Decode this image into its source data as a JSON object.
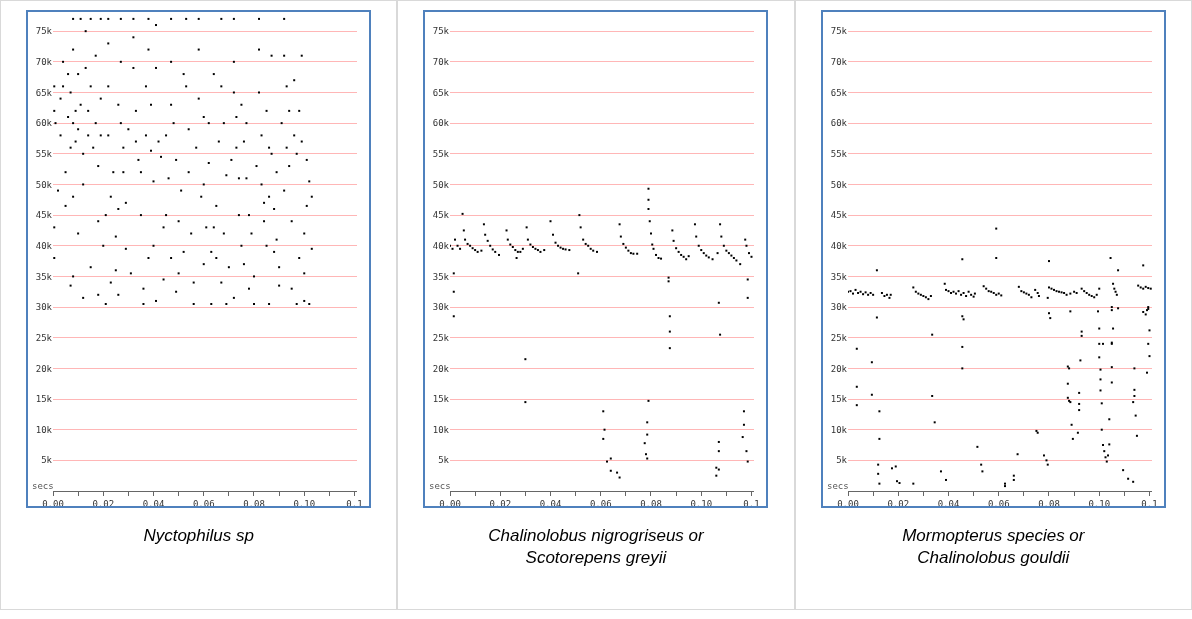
{
  "chart_data": [
    {
      "type": "scatter",
      "title": "Nyctophilus sp",
      "xlabel": "secs",
      "marker": "square",
      "grid": "y",
      "xlim": [
        0,
        0.121
      ],
      "ylim": [
        0,
        77800
      ],
      "xticks": [
        {
          "value": 0,
          "label": "0.00"
        },
        {
          "value": 0.01,
          "label": null
        },
        {
          "value": 0.02,
          "label": "0.02"
        },
        {
          "value": 0.03,
          "label": null
        },
        {
          "value": 0.04,
          "label": "0.04"
        },
        {
          "value": 0.05,
          "label": null
        },
        {
          "value": 0.06,
          "label": "0.06"
        },
        {
          "value": 0.07,
          "label": null
        },
        {
          "value": 0.08,
          "label": "0.08"
        },
        {
          "value": 0.09,
          "label": null
        },
        {
          "value": 0.1,
          "label": "0.10"
        },
        {
          "value": 0.11,
          "label": null
        },
        {
          "value": 0.12,
          "label": "0.1"
        }
      ],
      "yticks": [
        {
          "value": 5000,
          "label": "5k"
        },
        {
          "value": 10000,
          "label": "10k"
        },
        {
          "value": 15000,
          "label": "15k"
        },
        {
          "value": 20000,
          "label": "20k"
        },
        {
          "value": 25000,
          "label": "25k"
        },
        {
          "value": 30000,
          "label": "30k"
        },
        {
          "value": 35000,
          "label": "35k"
        },
        {
          "value": 40000,
          "label": "40k"
        },
        {
          "value": 45000,
          "label": "45k"
        },
        {
          "value": 50000,
          "label": "50k"
        },
        {
          "value": 55000,
          "label": "55k"
        },
        {
          "value": 60000,
          "label": "60k"
        },
        {
          "value": 65000,
          "label": "65k"
        },
        {
          "value": 70000,
          "label": "70k"
        },
        {
          "value": 75000,
          "label": "75k"
        }
      ],
      "series": [
        {
          "color": "#000000",
          "x": [
            0.0005,
            0.0005,
            0.0005,
            0.0005,
            0.001,
            0.002,
            0.003,
            0.003,
            0.004,
            0.004,
            0.005,
            0.005,
            0.006,
            0.006,
            0.007,
            0.007,
            0.007,
            0.008,
            0.008,
            0.008,
            0.008,
            0.008,
            0.009,
            0.009,
            0.01,
            0.01,
            0.01,
            0.011,
            0.011,
            0.012,
            0.012,
            0.012,
            0.013,
            0.013,
            0.014,
            0.014,
            0.015,
            0.015,
            0.015,
            0.016,
            0.017,
            0.017,
            0.018,
            0.018,
            0.018,
            0.019,
            0.019,
            0.019,
            0.02,
            0.021,
            0.021,
            0.022,
            0.022,
            0.022,
            0.022,
            0.023,
            0.023,
            0.024,
            0.025,
            0.025,
            0.026,
            0.026,
            0.026,
            0.027,
            0.027,
            0.027,
            0.028,
            0.028,
            0.029,
            0.029,
            0.03,
            0.031,
            0.032,
            0.032,
            0.032,
            0.033,
            0.033,
            0.034,
            0.035,
            0.035,
            0.036,
            0.036,
            0.037,
            0.037,
            0.038,
            0.038,
            0.038,
            0.039,
            0.039,
            0.04,
            0.04,
            0.041,
            0.041,
            0.041,
            0.042,
            0.043,
            0.044,
            0.044,
            0.045,
            0.045,
            0.046,
            0.047,
            0.047,
            0.047,
            0.047,
            0.048,
            0.049,
            0.049,
            0.05,
            0.05,
            0.051,
            0.052,
            0.052,
            0.053,
            0.053,
            0.054,
            0.054,
            0.055,
            0.056,
            0.056,
            0.057,
            0.058,
            0.058,
            0.058,
            0.059,
            0.06,
            0.06,
            0.06,
            0.061,
            0.062,
            0.062,
            0.063,
            0.063,
            0.064,
            0.064,
            0.065,
            0.065,
            0.066,
            0.067,
            0.067,
            0.067,
            0.068,
            0.068,
            0.069,
            0.069,
            0.07,
            0.071,
            0.072,
            0.072,
            0.072,
            0.072,
            0.073,
            0.073,
            0.074,
            0.074,
            0.075,
            0.075,
            0.076,
            0.076,
            0.077,
            0.077,
            0.078,
            0.078,
            0.079,
            0.08,
            0.08,
            0.081,
            0.082,
            0.082,
            0.082,
            0.083,
            0.083,
            0.084,
            0.084,
            0.085,
            0.085,
            0.086,
            0.086,
            0.086,
            0.087,
            0.087,
            0.088,
            0.088,
            0.089,
            0.089,
            0.09,
            0.09,
            0.091,
            0.092,
            0.092,
            0.092,
            0.093,
            0.093,
            0.094,
            0.094,
            0.095,
            0.095,
            0.096,
            0.096,
            0.097,
            0.097,
            0.098,
            0.098,
            0.099,
            0.099,
            0.1,
            0.1,
            0.1,
            0.101,
            0.101,
            0.102,
            0.102,
            0.103,
            0.103
          ],
          "values": [
            66000,
            62000,
            43000,
            38000,
            60000,
            49000,
            58000,
            64000,
            70000,
            66000,
            46500,
            52000,
            68000,
            61000,
            65000,
            56000,
            33500,
            77000,
            72000,
            60000,
            35000,
            48000,
            62000,
            57000,
            68000,
            59000,
            42000,
            77000,
            63000,
            55000,
            50000,
            31500,
            75000,
            69000,
            62000,
            58000,
            36500,
            77000,
            66000,
            56000,
            71000,
            60000,
            53000,
            44000,
            32000,
            77000,
            64000,
            58000,
            40000,
            30500,
            45000,
            77000,
            73000,
            66000,
            58000,
            48000,
            34000,
            52000,
            41500,
            36000,
            63000,
            46000,
            32000,
            77000,
            70000,
            60000,
            56000,
            52000,
            47000,
            39500,
            59000,
            35500,
            77000,
            74000,
            69000,
            62000,
            57000,
            54000,
            52000,
            45000,
            33000,
            30500,
            66000,
            58000,
            77000,
            72000,
            38000,
            63000,
            55500,
            50500,
            40000,
            76000,
            69000,
            31000,
            57000,
            54500,
            43000,
            34500,
            58000,
            45000,
            51000,
            77000,
            70000,
            63000,
            38000,
            60000,
            54000,
            32500,
            44000,
            35500,
            49000,
            68000,
            39000,
            77000,
            66000,
            59000,
            52000,
            42000,
            34000,
            30500,
            56000,
            77000,
            72000,
            64000,
            48000,
            61000,
            50000,
            37000,
            43000,
            60000,
            53500,
            39000,
            30500,
            68000,
            43000,
            46500,
            38000,
            57000,
            77000,
            66000,
            34000,
            60000,
            42000,
            51500,
            30500,
            36500,
            54000,
            77000,
            70000,
            65000,
            31500,
            61000,
            56000,
            51000,
            45000,
            63000,
            40000,
            57000,
            37000,
            60000,
            51000,
            45000,
            33000,
            42000,
            35000,
            30500,
            53000,
            77000,
            72000,
            65000,
            58000,
            50000,
            47000,
            44000,
            62000,
            40000,
            56000,
            48000,
            30500,
            71000,
            55000,
            39000,
            46000,
            52000,
            41000,
            36500,
            33500,
            60000,
            77000,
            71000,
            49000,
            66000,
            56000,
            53000,
            62000,
            44000,
            33000,
            67000,
            58000,
            55000,
            30500,
            62000,
            38000,
            71000,
            57000,
            42000,
            35500,
            31000,
            54000,
            46500,
            50500,
            30500,
            48000,
            39500
          ]
        }
      ]
    },
    {
      "type": "scatter",
      "title": "Chalinolobus nigrogriseus or Scotorepens greyii",
      "xlabel": "secs",
      "marker": "square",
      "grid": "y",
      "xlim": [
        0,
        0.121
      ],
      "ylim": [
        0,
        77800
      ],
      "xticks": [
        {
          "value": 0,
          "label": "0.00"
        },
        {
          "value": 0.01,
          "label": null
        },
        {
          "value": 0.02,
          "label": "0.02"
        },
        {
          "value": 0.03,
          "label": null
        },
        {
          "value": 0.04,
          "label": "0.04"
        },
        {
          "value": 0.05,
          "label": null
        },
        {
          "value": 0.06,
          "label": "0.06"
        },
        {
          "value": 0.07,
          "label": null
        },
        {
          "value": 0.08,
          "label": "0.08"
        },
        {
          "value": 0.09,
          "label": null
        },
        {
          "value": 0.1,
          "label": "0.10"
        },
        {
          "value": 0.11,
          "label": null
        },
        {
          "value": 0.12,
          "label": "0.1"
        }
      ],
      "yticks": [
        {
          "value": 5000,
          "label": "5k"
        },
        {
          "value": 10000,
          "label": "10k"
        },
        {
          "value": 15000,
          "label": "15k"
        },
        {
          "value": 20000,
          "label": "20k"
        },
        {
          "value": 25000,
          "label": "25k"
        },
        {
          "value": 30000,
          "label": "30k"
        },
        {
          "value": 35000,
          "label": "35k"
        },
        {
          "value": 40000,
          "label": "40k"
        },
        {
          "value": 45000,
          "label": "45k"
        },
        {
          "value": 50000,
          "label": "50k"
        },
        {
          "value": 55000,
          "label": "55k"
        },
        {
          "value": 60000,
          "label": "60k"
        },
        {
          "value": 65000,
          "label": "65k"
        },
        {
          "value": 70000,
          "label": "70k"
        },
        {
          "value": 75000,
          "label": "75k"
        }
      ],
      "series": [
        {
          "color": "#000000",
          "x": [
            0,
            0.001,
            0.002,
            0.003,
            0.004,
            0.0015,
            0.0015,
            0.0015,
            0.005,
            0.0055,
            0.006,
            0.007,
            0.008,
            0.009,
            0.01,
            0.011,
            0.0125,
            0.0135,
            0.014,
            0.015,
            0.016,
            0.017,
            0.018,
            0.0195,
            0.0225,
            0.023,
            0.024,
            0.025,
            0.026,
            0.027,
            0.028,
            0.029,
            0.0265,
            0.0305,
            0.031,
            0.032,
            0.033,
            0.034,
            0.035,
            0.036,
            0.0375,
            0.04,
            0.041,
            0.042,
            0.043,
            0.044,
            0.045,
            0.046,
            0.0475,
            0.051,
            0.0515,
            0.052,
            0.053,
            0.054,
            0.055,
            0.056,
            0.057,
            0.0585,
            0.03,
            0.03,
            0.061,
            0.0615,
            0.061,
            0.0625,
            0.064,
            0.064,
            0.0665,
            0.0675,
            0.0675,
            0.068,
            0.069,
            0.07,
            0.071,
            0.072,
            0.073,
            0.0745,
            0.0775,
            0.078,
            0.0785,
            0.0785,
            0.0785,
            0.079,
            0.079,
            0.079,
            0.079,
            0.0795,
            0.08,
            0.0805,
            0.081,
            0.082,
            0.083,
            0.084,
            0.087,
            0.087,
            0.0875,
            0.0875,
            0.0875,
            0.0885,
            0.089,
            0.09,
            0.091,
            0.092,
            0.093,
            0.094,
            0.095,
            0.0975,
            0.098,
            0.099,
            0.1,
            0.101,
            0.102,
            0.103,
            0.1045,
            0.106,
            0.106,
            0.107,
            0.107,
            0.107,
            0.107,
            0.1075,
            0.1065,
            0.1075,
            0.108,
            0.109,
            0.11,
            0.111,
            0.112,
            0.113,
            0.114,
            0.1155,
            0.117,
            0.117,
            0.1165,
            0.118,
            0.1185,
            0.1185,
            0.1185,
            0.1175,
            0.118,
            0.119,
            0.12
          ],
          "values": [
            40000,
            39500,
            41000,
            40000,
            39500,
            35500,
            32500,
            28500,
            45200,
            42500,
            41000,
            40300,
            40000,
            39600,
            39300,
            39000,
            39200,
            43500,
            41800,
            40800,
            40000,
            39400,
            39000,
            38500,
            42500,
            41000,
            40200,
            39800,
            39300,
            39000,
            39000,
            39500,
            38000,
            43000,
            41000,
            40200,
            39800,
            39500,
            39300,
            39000,
            39300,
            44000,
            41800,
            40500,
            40000,
            39700,
            39500,
            39400,
            39300,
            35500,
            45000,
            43000,
            41000,
            40300,
            40000,
            39500,
            39200,
            39000,
            21500,
            14500,
            13000,
            10000,
            8500,
            4800,
            5300,
            3300,
            3000,
            2200,
            43500,
            41500,
            40300,
            39700,
            39200,
            38800,
            38700,
            38700,
            7800,
            6000,
            5300,
            9200,
            11200,
            14700,
            49300,
            47500,
            46000,
            44000,
            42000,
            40200,
            39500,
            38500,
            38000,
            37900,
            34200,
            34800,
            28500,
            26000,
            23300,
            42500,
            40800,
            39600,
            39000,
            38500,
            38200,
            37800,
            38300,
            43500,
            41500,
            40000,
            39300,
            38800,
            38400,
            38100,
            37800,
            3800,
            2500,
            8000,
            6500,
            3500,
            30700,
            25500,
            38800,
            43500,
            41500,
            40000,
            39200,
            38800,
            38400,
            38000,
            37600,
            37000,
            13000,
            10800,
            8800,
            6500,
            4800,
            31500,
            34500,
            41000,
            40000,
            38800,
            38200
          ]
        }
      ]
    },
    {
      "type": "scatter",
      "title": "Mormopterus species or Chalinolobus gouldii",
      "xlabel": "secs",
      "marker": "square",
      "grid": "y",
      "xlim": [
        0,
        0.121
      ],
      "ylim": [
        0,
        77800
      ],
      "xticks": [
        {
          "value": 0,
          "label": "0.00"
        },
        {
          "value": 0.01,
          "label": null
        },
        {
          "value": 0.02,
          "label": "0.02"
        },
        {
          "value": 0.03,
          "label": null
        },
        {
          "value": 0.04,
          "label": "0.04"
        },
        {
          "value": 0.05,
          "label": null
        },
        {
          "value": 0.06,
          "label": "0.06"
        },
        {
          "value": 0.07,
          "label": null
        },
        {
          "value": 0.08,
          "label": "0.08"
        },
        {
          "value": 0.09,
          "label": null
        },
        {
          "value": 0.1,
          "label": "0.10"
        },
        {
          "value": 0.11,
          "label": null
        },
        {
          "value": 0.12,
          "label": "0.1"
        }
      ],
      "yticks": [
        {
          "value": 5000,
          "label": "5k"
        },
        {
          "value": 10000,
          "label": "10k"
        },
        {
          "value": 15000,
          "label": "15k"
        },
        {
          "value": 20000,
          "label": "20k"
        },
        {
          "value": 25000,
          "label": "25k"
        },
        {
          "value": 30000,
          "label": "30k"
        },
        {
          "value": 35000,
          "label": "35k"
        },
        {
          "value": 40000,
          "label": "40k"
        },
        {
          "value": 45000,
          "label": "45k"
        },
        {
          "value": 50000,
          "label": "50k"
        },
        {
          "value": 55000,
          "label": "55k"
        },
        {
          "value": 60000,
          "label": "60k"
        },
        {
          "value": 65000,
          "label": "65k"
        },
        {
          "value": 70000,
          "label": "70k"
        },
        {
          "value": 75000,
          "label": "75k"
        }
      ],
      "series": [
        {
          "color": "#000000",
          "x": [
            0,
            0.001,
            0.002,
            0.003,
            0.004,
            0.005,
            0.006,
            0.007,
            0.008,
            0.009,
            0.01,
            0.0135,
            0.0145,
            0.0155,
            0.0165,
            0.017,
            0.026,
            0.027,
            0.028,
            0.029,
            0.03,
            0.031,
            0.032,
            0.033,
            0.0385,
            0.039,
            0.04,
            0.041,
            0.042,
            0.043,
            0.044,
            0.045,
            0.046,
            0.047,
            0.048,
            0.049,
            0.05,
            0.0505,
            0.054,
            0.055,
            0.056,
            0.057,
            0.058,
            0.059,
            0.06,
            0.061,
            0.068,
            0.069,
            0.07,
            0.071,
            0.072,
            0.073,
            0.0745,
            0.0755,
            0.076,
            0.0795,
            0.08,
            0.081,
            0.082,
            0.083,
            0.084,
            0.085,
            0.086,
            0.087,
            0.0885,
            0.09,
            0.091,
            0.093,
            0.094,
            0.095,
            0.096,
            0.097,
            0.098,
            0.099,
            0.1,
            0.1055,
            0.106,
            0.1065,
            0.107,
            0.1155,
            0.1165,
            0.1175,
            0.1185,
            0.1195,
            0.1205,
            0.0115,
            0.0115,
            0.0035,
            0.0035,
            0.0035,
            0.0095,
            0.0095,
            0.0125,
            0.0125,
            0.012,
            0.012,
            0.0125,
            0.0175,
            0.019,
            0.0195,
            0.0205,
            0.026,
            0.0335,
            0.0335,
            0.0345,
            0.037,
            0.039,
            0.0455,
            0.0455,
            0.046,
            0.0455,
            0.0455,
            0.0515,
            0.053,
            0.0535,
            0.059,
            0.059,
            0.0625,
            0.0625,
            0.066,
            0.066,
            0.0675,
            0.075,
            0.0755,
            0.078,
            0.079,
            0.0795,
            0.08,
            0.08,
            0.0805,
            0.0875,
            0.088,
            0.0875,
            0.0875,
            0.088,
            0.0885,
            0.0885,
            0.089,
            0.0895,
            0.0915,
            0.092,
            0.092,
            0.092,
            0.0925,
            0.093,
            0.093,
            0.0995,
            0.1,
            0.1,
            0.1,
            0.1005,
            0.1005,
            0.1005,
            0.101,
            0.101,
            0.1015,
            0.1015,
            0.102,
            0.1025,
            0.103,
            0.1035,
            0.104,
            0.104,
            0.1045,
            0.105,
            0.105,
            0.105,
            0.105,
            0.105,
            0.105,
            0.1055,
            0.1075,
            0.1075,
            0.1095,
            0.1115,
            0.1135,
            0.114,
            0.114,
            0.114,
            0.1135,
            0.1145,
            0.115,
            0.1175,
            0.1175,
            0.1185,
            0.119,
            0.1195,
            0.1195,
            0.1195,
            0.12,
            0.12,
            0.119
          ],
          "values": [
            32500,
            32600,
            32200,
            32800,
            32300,
            32500,
            32100,
            32400,
            32000,
            32300,
            32000,
            32300,
            31800,
            32000,
            31500,
            32000,
            33200,
            32500,
            32200,
            32000,
            31800,
            31600,
            31300,
            31800,
            33800,
            32800,
            32600,
            32300,
            32500,
            32200,
            32600,
            32000,
            32300,
            31800,
            32500,
            32000,
            31700,
            32200,
            33400,
            33000,
            32600,
            32500,
            32300,
            32000,
            32200,
            31900,
            33300,
            32600,
            32400,
            32200,
            32000,
            31600,
            32800,
            32300,
            31800,
            31500,
            33200,
            33000,
            32800,
            32600,
            32500,
            32400,
            32300,
            32000,
            32200,
            32500,
            32300,
            33000,
            32600,
            32300,
            32000,
            31800,
            31600,
            32000,
            33000,
            33800,
            33000,
            32500,
            32000,
            33500,
            33200,
            33000,
            33300,
            33100,
            33000,
            36000,
            28300,
            23200,
            17000,
            14000,
            21000,
            15700,
            13000,
            8500,
            4300,
            2800,
            1200,
            3700,
            4000,
            1600,
            1300,
            1200,
            25500,
            15500,
            11200,
            3200,
            1800,
            37800,
            28500,
            28000,
            23500,
            20000,
            7200,
            4300,
            3200,
            42800,
            38000,
            800,
            1200,
            2500,
            1800,
            6000,
            9800,
            9500,
            5800,
            5000,
            4300,
            37500,
            29000,
            28200,
            20300,
            20000,
            17500,
            15200,
            14700,
            14500,
            29300,
            10800,
            8500,
            9500,
            16000,
            14200,
            13200,
            21300,
            25300,
            26000,
            29300,
            26500,
            24000,
            21800,
            19800,
            18200,
            16400,
            14300,
            10000,
            24000,
            7500,
            6500,
            5500,
            4800,
            5800,
            7600,
            11700,
            38000,
            30000,
            29500,
            24000,
            24200,
            20200,
            17700,
            26500,
            36000,
            29800,
            3400,
            2000,
            1500,
            20000,
            16500,
            15500,
            14500,
            12300,
            9000,
            36800,
            29200,
            28800,
            29500,
            30000,
            29700,
            24000,
            26200,
            22000,
            19300
          ]
        }
      ]
    }
  ]
}
